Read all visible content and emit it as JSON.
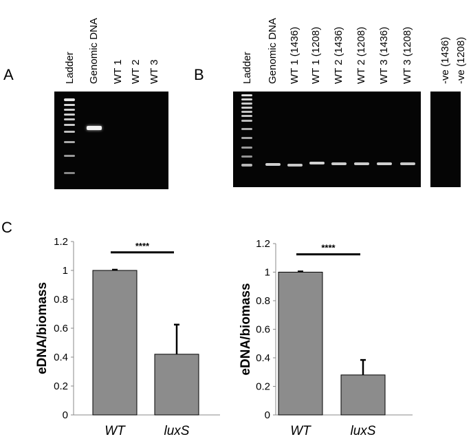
{
  "panel_a": {
    "letter": "A",
    "lanes": [
      {
        "label": "Ladder"
      },
      {
        "label": "Genomic DNA"
      },
      {
        "label": "WT 1"
      },
      {
        "label": "WT 2"
      },
      {
        "label": "WT 3"
      }
    ]
  },
  "panel_b": {
    "letter": "B",
    "lanes": [
      {
        "label": "Ladder"
      },
      {
        "label": "Genomic DNA"
      },
      {
        "label": "WT 1 (1436)"
      },
      {
        "label": "WT 1 (1208)"
      },
      {
        "label": "WT 2 (1436)"
      },
      {
        "label": "WT 2 (1208)"
      },
      {
        "label": "WT 3 (1436)"
      },
      {
        "label": "WT 3 (1208)"
      }
    ],
    "neg_lanes": [
      {
        "label": "-ve (1436)"
      },
      {
        "label": "-ve (1208)"
      }
    ]
  },
  "panel_c": {
    "letter": "C"
  },
  "chart_data": [
    {
      "type": "bar",
      "categories": [
        "WT",
        "luxS"
      ],
      "values": [
        1.0,
        0.42
      ],
      "errors": [
        0.005,
        0.205
      ],
      "ylabel": "eDNA/biomass",
      "ylim": [
        0,
        1.2
      ],
      "yticks": [
        "0",
        "0.2",
        "0.4",
        "0.6",
        "0.8",
        "1",
        "1.2"
      ],
      "significance": "****",
      "bar_color": "#8c8c8c"
    },
    {
      "type": "bar",
      "categories": [
        "WT",
        "luxS"
      ],
      "values": [
        1.0,
        0.28
      ],
      "errors": [
        0.005,
        0.105
      ],
      "ylabel": "eDNA/biomass",
      "ylim": [
        0,
        1.2
      ],
      "yticks": [
        "0",
        "0.2",
        "0.4",
        "0.6",
        "0.8",
        "1",
        "1.2"
      ],
      "significance": "****",
      "bar_color": "#8c8c8c"
    }
  ]
}
